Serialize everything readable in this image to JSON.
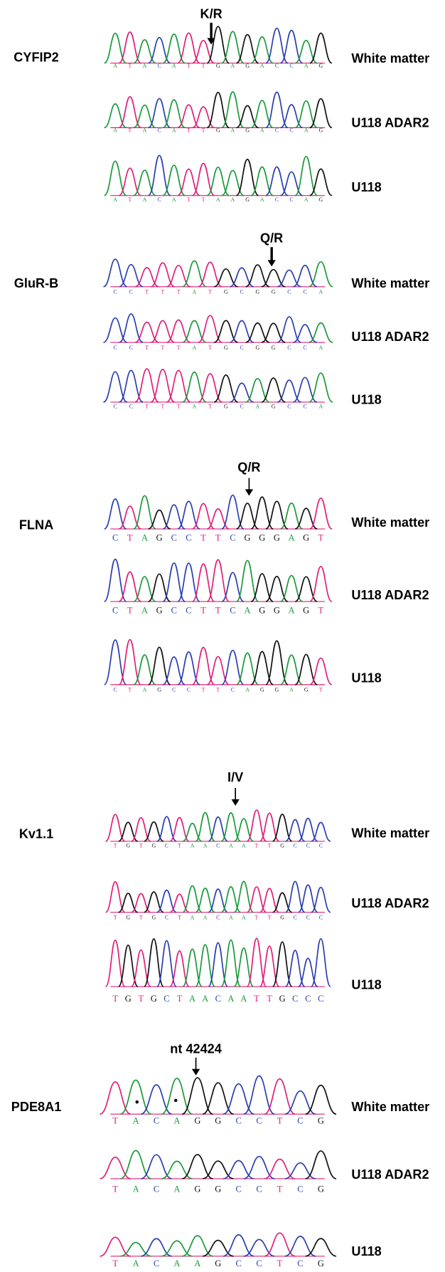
{
  "panels": [
    {
      "gene": "CYFIP2",
      "site": "K/R",
      "traces": [
        {
          "sample": "White matter",
          "bases": [
            "A",
            "T",
            "A",
            "C",
            "A",
            "T",
            "T",
            "G",
            "A",
            "G",
            "A",
            "C",
            "C",
            "A",
            "G"
          ]
        },
        {
          "sample": "U118 ADAR2",
          "bases": [
            "A",
            "T",
            "A",
            "C",
            "A",
            "T",
            "T",
            "G",
            "A",
            "G",
            "A",
            "C",
            "C",
            "A",
            "G"
          ]
        },
        {
          "sample": "U118",
          "bases": [
            "A",
            "T",
            "A",
            "C",
            "A",
            "T",
            "T",
            "A",
            "A",
            "G",
            "A",
            "C",
            "C",
            "A",
            "G"
          ]
        }
      ]
    },
    {
      "gene": "GluR-B",
      "site": "Q/R",
      "traces": [
        {
          "sample": "White matter",
          "bases": [
            "C",
            "C",
            "T",
            "T",
            "T",
            "A",
            "T",
            "G",
            "C",
            "G",
            "G",
            "C",
            "C",
            "A"
          ]
        },
        {
          "sample": "U118 ADAR2",
          "bases": [
            "C",
            "C",
            "T",
            "T",
            "T",
            "A",
            "T",
            "G",
            "C",
            "G",
            "G",
            "C",
            "C",
            "A"
          ]
        },
        {
          "sample": "U118",
          "bases": [
            "C",
            "C",
            "T",
            "T",
            "T",
            "A",
            "T",
            "G",
            "C",
            "A",
            "G",
            "C",
            "C",
            "A"
          ]
        }
      ]
    },
    {
      "gene": "FLNA",
      "site": "Q/R",
      "traces": [
        {
          "sample": "White matter",
          "bases": [
            "C",
            "T",
            "A",
            "G",
            "C",
            "C",
            "T",
            "T",
            "C",
            "G",
            "G",
            "G",
            "A",
            "G",
            "T"
          ]
        },
        {
          "sample": "U118 ADAR2",
          "bases": [
            "C",
            "T",
            "A",
            "G",
            "C",
            "C",
            "T",
            "T",
            "C",
            "A",
            "G",
            "G",
            "A",
            "G",
            "T"
          ]
        },
        {
          "sample": "U118",
          "bases": [
            "C",
            "T",
            "A",
            "G",
            "C",
            "C",
            "T",
            "T",
            "C",
            "A",
            "G",
            "G",
            "A",
            "G",
            "T"
          ]
        }
      ]
    },
    {
      "gene": "Kv1.1",
      "site": "I/V",
      "traces": [
        {
          "sample": "White matter",
          "bases": [
            "T",
            "G",
            "T",
            "G",
            "C",
            "T",
            "A",
            "A",
            "C",
            "A",
            "A",
            "T",
            "T",
            "G",
            "C",
            "C",
            "C"
          ]
        },
        {
          "sample": "U118 ADAR2",
          "bases": [
            "T",
            "G",
            "T",
            "G",
            "C",
            "T",
            "A",
            "A",
            "C",
            "A",
            "A",
            "T",
            "T",
            "G",
            "C",
            "C",
            "C"
          ]
        },
        {
          "sample": "U118",
          "bases": [
            "T",
            "G",
            "T",
            "G",
            "C",
            "T",
            "A",
            "A",
            "C",
            "A",
            "A",
            "T",
            "T",
            "G",
            "C",
            "C",
            "C"
          ]
        }
      ]
    },
    {
      "gene": "PDE8A1",
      "site": "nt 42424",
      "traces": [
        {
          "sample": "White matter",
          "bases": [
            "T",
            "A",
            "C",
            "A",
            "G",
            "G",
            "C",
            "C",
            "T",
            "C",
            "G"
          ]
        },
        {
          "sample": "U118 ADAR2",
          "bases": [
            "T",
            "A",
            "C",
            "A",
            "G",
            "G",
            "C",
            "C",
            "T",
            "C",
            "G"
          ]
        },
        {
          "sample": "U118",
          "bases": [
            "T",
            "A",
            "C",
            "A",
            "A",
            "G",
            "C",
            "C",
            "T",
            "C",
            "G"
          ]
        }
      ]
    }
  ]
}
